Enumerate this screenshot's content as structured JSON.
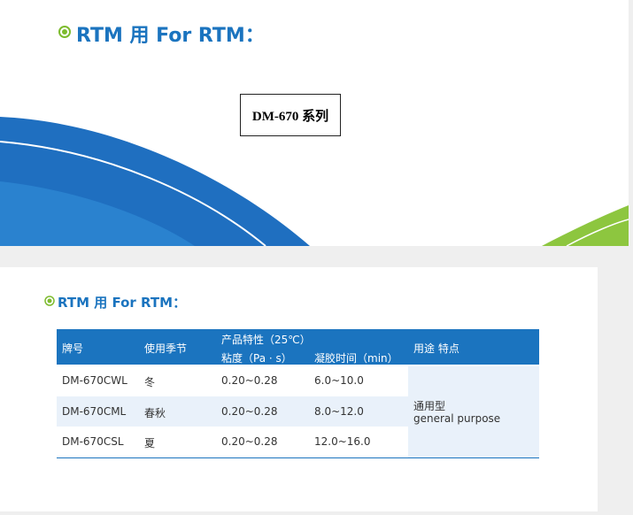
{
  "header": {
    "title": "RTM 用 For RTM："
  },
  "product_box": {
    "label": "DM-670 系列"
  },
  "section": {
    "title": "RTM 用 For RTM："
  },
  "table": {
    "headers": [
      "牌号",
      "使用季节",
      "产品特性（25℃）",
      "粘度（Pa · s）",
      "凝胶时间（min）",
      "用途 特点"
    ],
    "rows": [
      [
        "DM-670CWL",
        "冬",
        "0.20~0.28",
        "6.0~10.0"
      ],
      [
        "DM-670CML",
        "春秋",
        "0.20~0.28",
        "8.0~12.0"
      ],
      [
        "DM-670CSL",
        "夏",
        "0.20~0.28",
        "12.0~16.0"
      ]
    ],
    "usage": [
      "通用型",
      "general purpose"
    ]
  }
}
